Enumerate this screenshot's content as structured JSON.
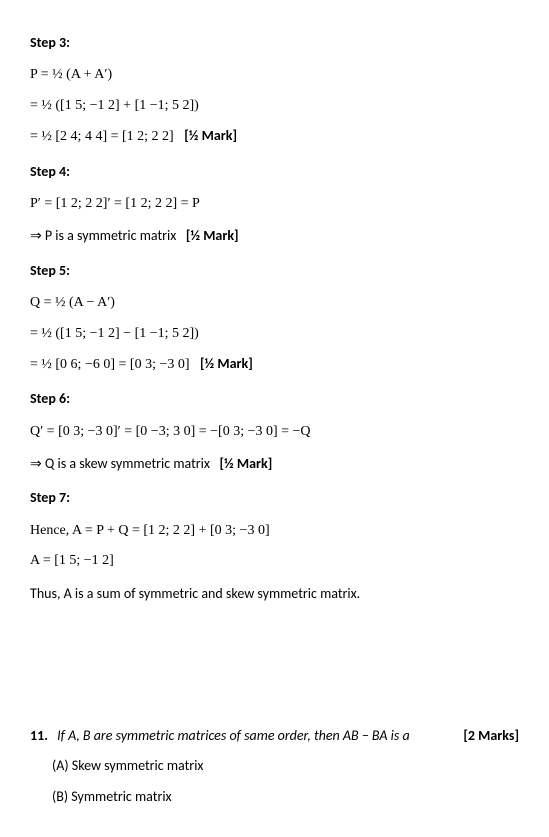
{
  "step3": {
    "header": "Step 3:",
    "line1": "P = ½ (A + A′)",
    "line2": "= ½ ([1 5; −1 2] + [1 −1; 5 2])",
    "line3": "= ½ [2 4; 4 4] = [1 2; 2 2]",
    "mark": "[½ Mark]"
  },
  "step4": {
    "header": "Step 4:",
    "line1": "P′ = [1 2; 2 2]′ = [1 2; 2 2] = P",
    "conclusion": "⇒ P is a symmetric matrix",
    "mark": "[½ Mark]"
  },
  "step5": {
    "header": "Step 5:",
    "line1": "Q = ½ (A − A′)",
    "line2": "= ½ ([1 5; −1 2] − [1 −1; 5 2])",
    "line3": "= ½ [0 6; −6 0] = [0 3; −3 0]",
    "mark": "[½ Mark]"
  },
  "step6": {
    "header": "Step 6:",
    "line1": "Q′ = [0 3; −3 0]′ = [0 −3; 3 0] = −[0 3; −3 0] = −Q",
    "conclusion": "⇒ Q is a skew symmetric matrix",
    "mark": "[½ Mark]"
  },
  "step7": {
    "header": "Step 7:",
    "line1": "Hence, A = P + Q = [1 2; 2 2] + [0 3; −3 0]",
    "line2": "A = [1 5; −1 2]",
    "conclusion": "Thus, A is a sum of symmetric and skew symmetric matrix."
  },
  "q11": {
    "number": "11.",
    "text": "If A, B are symmetric matrices of same order, then AB − BA is a",
    "marks": "[2 Marks]",
    "optA": "(A) Skew symmetric matrix",
    "optB": "(B) Symmetric matrix"
  }
}
